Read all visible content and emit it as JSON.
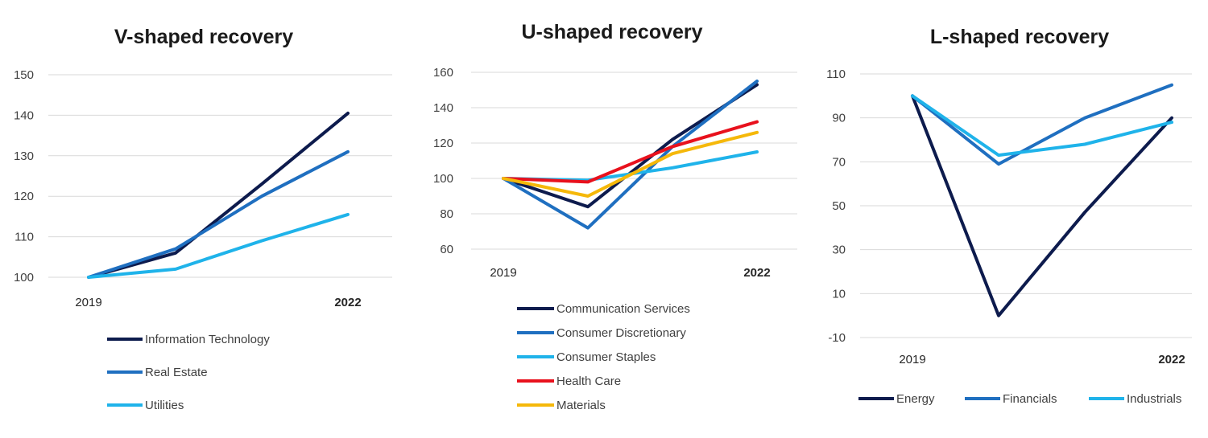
{
  "colors": {
    "navy": "#0d1b4d",
    "blue": "#1f6fc0",
    "light_blue": "#1fb3ea",
    "red": "#e8111d",
    "yellow": "#f5b80a"
  },
  "chart_data": [
    {
      "type": "line",
      "title": "V-shaped recovery",
      "x": [
        "2019",
        "2020",
        "2021",
        "2022"
      ],
      "x_tick_labels": [
        "2019",
        "",
        "",
        "2022"
      ],
      "ylim": [
        100,
        150
      ],
      "yticks": [
        100,
        110,
        120,
        130,
        140,
        150
      ],
      "grid": true,
      "legend_position": "bottom",
      "series": [
        {
          "name": "Information Technology",
          "color": "#0d1b4d",
          "values": [
            100,
            106,
            123,
            140.5
          ]
        },
        {
          "name": "Real Estate",
          "color": "#1f6fc0",
          "values": [
            100,
            107,
            120,
            131
          ]
        },
        {
          "name": "Utilities",
          "color": "#1fb3ea",
          "values": [
            100,
            102,
            109,
            115.5
          ]
        }
      ]
    },
    {
      "type": "line",
      "title": "U-shaped recovery",
      "x": [
        "2019",
        "2020",
        "2021",
        "2022"
      ],
      "x_tick_labels": [
        "2019",
        "",
        "",
        "2022"
      ],
      "ylim": [
        60,
        160
      ],
      "yticks": [
        60,
        80,
        100,
        120,
        140,
        160
      ],
      "grid": true,
      "legend_position": "bottom",
      "series": [
        {
          "name": "Communication Services",
          "color": "#0d1b4d",
          "values": [
            100,
            84,
            122,
            153
          ]
        },
        {
          "name": "Consumer Discretionary",
          "color": "#1f6fc0",
          "values": [
            100,
            72,
            118,
            155
          ]
        },
        {
          "name": "Consumer Staples",
          "color": "#1fb3ea",
          "values": [
            100,
            99,
            106,
            115
          ]
        },
        {
          "name": "Health Care",
          "color": "#e8111d",
          "values": [
            100,
            98,
            118,
            132
          ]
        },
        {
          "name": "Materials",
          "color": "#f5b80a",
          "values": [
            100,
            90,
            114,
            126
          ]
        }
      ]
    },
    {
      "type": "line",
      "title": "L-shaped recovery",
      "x": [
        "2019",
        "2020",
        "2021",
        "2022"
      ],
      "x_tick_labels": [
        "2019",
        "",
        "",
        "2022"
      ],
      "ylim": [
        -10,
        110
      ],
      "yticks": [
        -10,
        10,
        30,
        50,
        70,
        90,
        110
      ],
      "grid": true,
      "legend_position": "bottom",
      "series": [
        {
          "name": "Energy",
          "color": "#0d1b4d",
          "values": [
            100,
            0,
            47,
            90
          ]
        },
        {
          "name": "Financials",
          "color": "#1f6fc0",
          "values": [
            100,
            69,
            90,
            105
          ]
        },
        {
          "name": "Industrials",
          "color": "#1fb3ea",
          "values": [
            100,
            73,
            78,
            88
          ]
        }
      ]
    }
  ]
}
